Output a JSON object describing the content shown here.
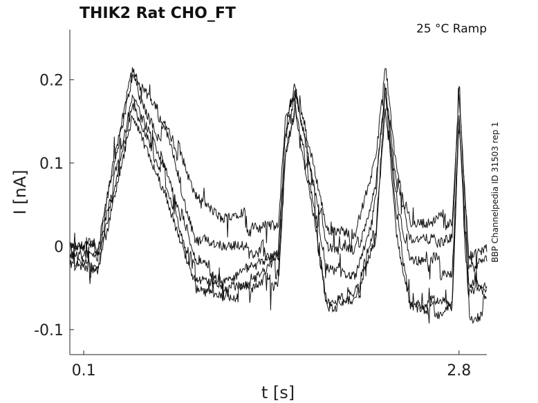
{
  "chart_data": {
    "type": "line",
    "title": "THIK2  Rat  CHO_FT",
    "annotation": "25 °C  Ramp",
    "side_label": "BBP Channelpedia ID 31503 rep 1",
    "xlabel": "t [s]",
    "ylabel": "I [nA]",
    "xlim": [
      0.0,
      3.0
    ],
    "ylim": [
      -0.13,
      0.26
    ],
    "xticks": [
      {
        "value": 0.1,
        "label": "0.1"
      },
      {
        "value": 2.8,
        "label": "2.8"
      }
    ],
    "yticks": [
      {
        "value": 0.2,
        "label": "0.2"
      },
      {
        "value": 0.1,
        "label": "0.1"
      },
      {
        "value": 0.0,
        "label": "0"
      },
      {
        "value": -0.1,
        "label": "-0.1"
      }
    ],
    "grid": false,
    "line_color": "#111111",
    "series": [
      {
        "x": [
          0.0,
          0.2,
          0.45,
          0.7,
          0.9,
          1.1,
          1.3,
          1.5,
          1.55,
          1.62,
          1.75,
          1.85,
          2.05,
          2.2,
          2.27,
          2.35,
          2.45,
          2.6,
          2.75,
          2.8,
          2.87,
          3.0
        ],
        "y": [
          0.0,
          0.0,
          0.2,
          0.15,
          0.05,
          0.02,
          0.03,
          0.02,
          0.15,
          0.18,
          0.1,
          0.02,
          0.01,
          0.1,
          0.21,
          0.1,
          0.02,
          0.02,
          0.03,
          0.19,
          -0.01,
          0.0
        ]
      },
      {
        "x": [
          0.0,
          0.2,
          0.45,
          0.7,
          0.9,
          1.1,
          1.3,
          1.5,
          1.55,
          1.62,
          1.75,
          1.85,
          2.05,
          2.2,
          2.27,
          2.35,
          2.45,
          2.6,
          2.75,
          2.8,
          2.87,
          3.0
        ],
        "y": [
          0.0,
          0.0,
          0.21,
          0.12,
          0.0,
          -0.01,
          -0.01,
          0.0,
          0.14,
          0.19,
          0.08,
          0.0,
          -0.01,
          0.08,
          0.2,
          0.08,
          0.0,
          0.0,
          0.01,
          0.18,
          -0.02,
          -0.01
        ]
      },
      {
        "x": [
          0.0,
          0.2,
          0.45,
          0.7,
          0.9,
          1.1,
          1.3,
          1.5,
          1.55,
          1.62,
          1.75,
          1.85,
          2.05,
          2.2,
          2.27,
          2.35,
          2.45,
          2.6,
          2.75,
          2.8,
          2.87,
          3.0
        ],
        "y": [
          -0.01,
          -0.01,
          0.19,
          0.1,
          -0.02,
          -0.03,
          -0.02,
          -0.01,
          0.13,
          0.18,
          0.06,
          -0.02,
          -0.03,
          0.05,
          0.19,
          0.05,
          -0.02,
          -0.02,
          -0.02,
          0.17,
          -0.03,
          -0.03
        ]
      },
      {
        "x": [
          0.0,
          0.2,
          0.45,
          0.7,
          0.9,
          1.1,
          1.3,
          1.5,
          1.55,
          1.62,
          1.75,
          1.85,
          2.05,
          2.2,
          2.27,
          2.35,
          2.45,
          2.6,
          2.75,
          2.8,
          2.87,
          3.0
        ],
        "y": [
          -0.01,
          -0.02,
          0.17,
          0.08,
          -0.04,
          -0.05,
          -0.05,
          -0.02,
          0.12,
          0.17,
          0.05,
          -0.06,
          -0.07,
          0.02,
          0.18,
          0.02,
          -0.06,
          -0.07,
          -0.07,
          0.16,
          -0.06,
          -0.06
        ]
      },
      {
        "x": [
          0.0,
          0.2,
          0.45,
          0.7,
          0.9,
          1.1,
          1.3,
          1.5,
          1.55,
          1.62,
          1.75,
          1.85,
          2.05,
          2.2,
          2.27,
          2.35,
          2.45,
          2.6,
          2.75,
          2.8,
          2.87,
          3.0
        ],
        "y": [
          -0.02,
          -0.03,
          0.16,
          0.06,
          -0.05,
          -0.06,
          -0.06,
          -0.03,
          0.11,
          0.16,
          0.04,
          -0.07,
          -0.08,
          0.0,
          0.17,
          0.0,
          -0.08,
          -0.08,
          -0.08,
          0.15,
          -0.08,
          -0.07
        ]
      }
    ]
  }
}
